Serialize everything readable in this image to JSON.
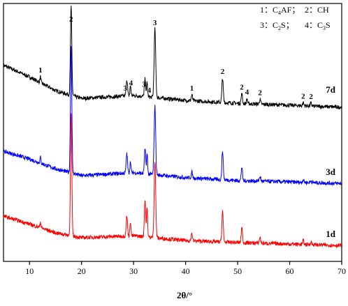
{
  "chart_data": {
    "type": "line",
    "xlabel": "2θ/°",
    "xlim": [
      5,
      70
    ],
    "xticks": [
      10,
      20,
      30,
      40,
      50,
      60,
      70
    ],
    "ylabel": "",
    "legend_entries": [
      {
        "key": "1",
        "phase_main": "C",
        "phase_sub": "4",
        "phase_rest": "AF",
        "sep": "；"
      },
      {
        "key": "2",
        "phase_main": "CH",
        "phase_sub": "",
        "phase_rest": "",
        "sep": ""
      },
      {
        "key": "3",
        "phase_main": "C",
        "phase_sub": "2",
        "phase_rest": "S",
        "sep": "；"
      },
      {
        "key": "4",
        "phase_main": "C",
        "phase_sub": "3",
        "phase_rest": "S",
        "sep": ""
      }
    ],
    "legend_colon": "：",
    "series": [
      {
        "name": "7d",
        "color": "#000000",
        "baseline": [
          [
            5,
            0.46
          ],
          [
            10,
            0.34
          ],
          [
            15,
            0.2
          ],
          [
            20,
            0.12
          ],
          [
            30,
            0.15
          ],
          [
            40,
            0.1
          ],
          [
            50,
            0.07
          ],
          [
            70,
            0.03
          ]
        ],
        "peaks": [
          [
            12.1,
            0.06,
            0.1
          ],
          [
            18.0,
            0.9,
            0.13
          ],
          [
            28.7,
            0.17,
            0.13
          ],
          [
            29.4,
            0.1,
            0.1
          ],
          [
            32.2,
            0.18,
            0.13
          ],
          [
            32.6,
            0.14,
            0.1
          ],
          [
            34.1,
            0.7,
            0.15
          ],
          [
            41.2,
            0.06,
            0.12
          ],
          [
            47.1,
            0.25,
            0.13
          ],
          [
            50.8,
            0.1,
            0.12
          ],
          [
            51.8,
            0.05,
            0.1
          ],
          [
            54.3,
            0.05,
            0.12
          ],
          [
            62.6,
            0.03,
            0.12
          ],
          [
            64.1,
            0.03,
            0.12
          ]
        ]
      },
      {
        "name": "3d",
        "color": "#0000ff",
        "baseline": [
          [
            5,
            0.35
          ],
          [
            10,
            0.27
          ],
          [
            15,
            0.17
          ],
          [
            20,
            0.1
          ],
          [
            30,
            0.13
          ],
          [
            40,
            0.08
          ],
          [
            50,
            0.05
          ],
          [
            70,
            0.02
          ]
        ],
        "peaks": [
          [
            12.1,
            0.06,
            0.1
          ],
          [
            18.0,
            1.3,
            0.13
          ],
          [
            28.7,
            0.2,
            0.13
          ],
          [
            29.4,
            0.12,
            0.1
          ],
          [
            32.2,
            0.25,
            0.13
          ],
          [
            32.6,
            0.2,
            0.1
          ],
          [
            34.1,
            0.7,
            0.15
          ],
          [
            41.2,
            0.06,
            0.12
          ],
          [
            47.1,
            0.3,
            0.13
          ],
          [
            50.8,
            0.14,
            0.12
          ],
          [
            54.3,
            0.05,
            0.12
          ],
          [
            62.6,
            0.03,
            0.12
          ],
          [
            64.1,
            0.02,
            0.12
          ]
        ]
      },
      {
        "name": "1d",
        "color": "#ff0000",
        "baseline": [
          [
            5,
            0.32
          ],
          [
            10,
            0.24
          ],
          [
            15,
            0.15
          ],
          [
            20,
            0.1
          ],
          [
            30,
            0.12
          ],
          [
            40,
            0.07
          ],
          [
            50,
            0.05
          ],
          [
            70,
            0.02
          ]
        ],
        "peaks": [
          [
            12.1,
            0.06,
            0.1
          ],
          [
            18.0,
            1.25,
            0.13
          ],
          [
            28.7,
            0.2,
            0.13
          ],
          [
            29.4,
            0.15,
            0.1
          ],
          [
            32.2,
            0.38,
            0.13
          ],
          [
            32.6,
            0.3,
            0.1
          ],
          [
            34.1,
            0.78,
            0.15
          ],
          [
            41.2,
            0.08,
            0.12
          ],
          [
            47.1,
            0.32,
            0.13
          ],
          [
            50.8,
            0.16,
            0.12
          ],
          [
            54.3,
            0.06,
            0.12
          ],
          [
            62.6,
            0.04,
            0.12
          ],
          [
            64.1,
            0.03,
            0.12
          ]
        ]
      }
    ],
    "peak_annotations": [
      {
        "label": "1",
        "x": 12.1
      },
      {
        "label": "2",
        "x": 18.0
      },
      {
        "label": "3",
        "x": 28.4
      },
      {
        "label": "4",
        "x": 29.5
      },
      {
        "label": "3",
        "x": 32.0
      },
      {
        "label": "4",
        "x": 33.0
      },
      {
        "label": "3",
        "x": 34.1
      },
      {
        "label": "1",
        "x": 41.2
      },
      {
        "label": "2",
        "x": 47.1
      },
      {
        "label": "2",
        "x": 50.8
      },
      {
        "label": "4",
        "x": 51.8
      },
      {
        "label": "2",
        "x": 54.3
      },
      {
        "label": "2",
        "x": 62.6
      },
      {
        "label": "2",
        "x": 64.1
      }
    ]
  }
}
